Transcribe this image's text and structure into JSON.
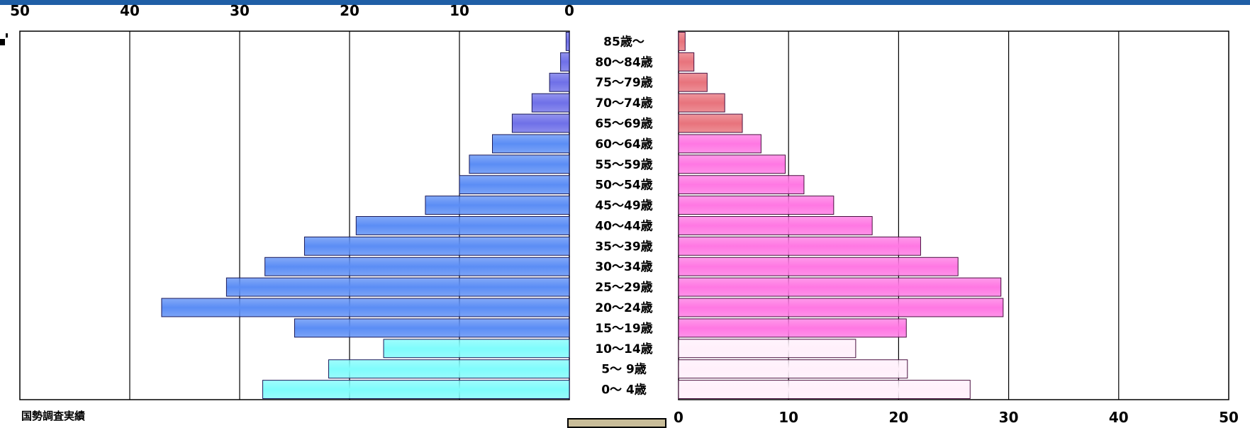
{
  "chart_data": {
    "type": "bar",
    "orientation": "horizontal",
    "layout": "population-pyramid",
    "categories": [
      "0〜 4歳",
      "5〜 9歳",
      "10〜14歳",
      "15〜19歳",
      "20〜24歳",
      "25〜29歳",
      "30〜34歳",
      "35〜39歳",
      "40〜44歳",
      "45〜49歳",
      "50〜54歳",
      "55〜59歳",
      "60〜64歳",
      "65〜69歳",
      "70〜74歳",
      "75〜79歳",
      "80〜84歳",
      "85歳〜"
    ],
    "series": [
      {
        "side": "left",
        "values": [
          27.9,
          21.9,
          16.9,
          25.0,
          37.1,
          31.2,
          27.7,
          24.1,
          19.4,
          13.1,
          10.0,
          9.1,
          7.0,
          5.2,
          3.4,
          1.8,
          0.8,
          0.3
        ]
      },
      {
        "side": "right",
        "values": [
          26.5,
          20.8,
          16.1,
          20.7,
          29.5,
          29.3,
          25.4,
          22.0,
          17.6,
          14.1,
          11.4,
          9.7,
          7.5,
          5.8,
          4.2,
          2.6,
          1.4,
          0.6
        ]
      }
    ],
    "xlim": [
      0,
      50
    ],
    "ticks": [
      "0",
      "10",
      "20",
      "30",
      "40",
      "50"
    ],
    "grid": true
  },
  "source_note": "国勢調査実績",
  "colors": {
    "male_youth": "#7ffcfc",
    "male_working": "#5b8df5",
    "male_elderly": "#6f70e8",
    "female_youth": "#fff0fb",
    "female_working": "#ff77e3",
    "female_elderly": "#e8737c",
    "top_bar": "#1f5fa6",
    "bottom_box": "#c9bd99"
  }
}
